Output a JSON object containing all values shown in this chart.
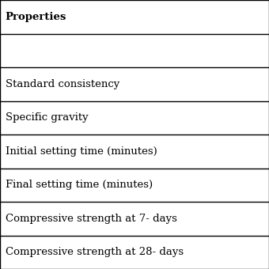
{
  "rows": [
    "Properties",
    " ",
    "Standard consistency",
    "Specific gravity",
    "Initial setting time (minutes)",
    "Final setting time (minutes)",
    "Compressive strength at 7- days",
    "Compressive strength at 28- days"
  ],
  "col_widths": [
    1.0
  ],
  "figsize": [
    3.4,
    3.4
  ],
  "dpi": 100,
  "background_color": "#ffffff",
  "text_color": "#000000",
  "font_size": 9.5,
  "line_color": "#000000",
  "line_width": 1.0
}
